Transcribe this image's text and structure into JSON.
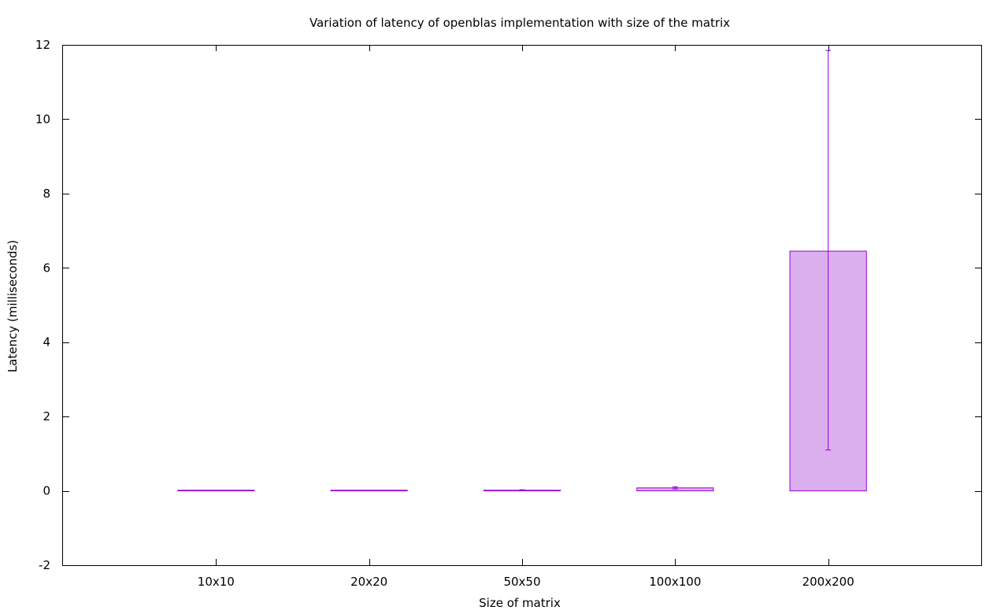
{
  "chart_data": {
    "type": "bar",
    "title": "Variation of latency of openblas implementation with size of the matrix",
    "xlabel": "Size of matrix",
    "ylabel": "Latency (milliseconds)",
    "categories": [
      "10x10",
      "20x20",
      "50x50",
      "100x100",
      "200x200"
    ],
    "values": [
      0.005,
      0.008,
      0.015,
      0.08,
      6.45
    ],
    "error_low": [
      0.002,
      0.004,
      0.005,
      0.05,
      1.1
    ],
    "error_high": [
      0.008,
      0.012,
      0.03,
      0.11,
      11.85
    ],
    "ylim": [
      -2,
      12
    ],
    "yticks": [
      -2,
      0,
      2,
      4,
      6,
      8,
      10,
      12
    ],
    "ytick_labels": [
      "-2",
      "0",
      "2",
      "4",
      "6",
      "8",
      "10",
      "12"
    ],
    "grid": false,
    "legend": "none",
    "colors": {
      "bar_fill": "#dcb0ee",
      "bar_stroke": "#9400d3",
      "axis": "#000000"
    }
  }
}
